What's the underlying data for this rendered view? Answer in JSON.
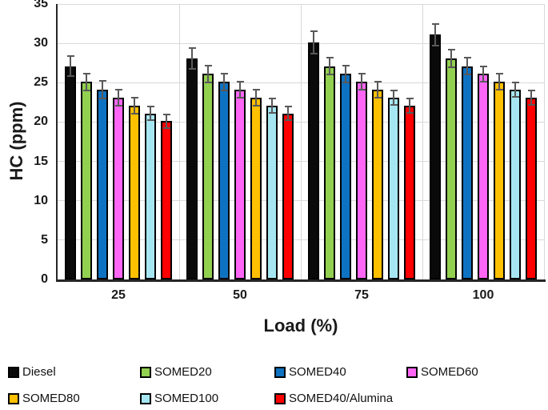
{
  "chart_data": {
    "type": "bar",
    "title": "",
    "xlabel": "Load (%)",
    "ylabel": "HC (ppm)",
    "categories": [
      "25",
      "50",
      "75",
      "100"
    ],
    "series": [
      {
        "name": "Diesel",
        "color": "#0a0a0a",
        "values": [
          27.1,
          28.1,
          30.1,
          31.1
        ],
        "errors": [
          1.4,
          1.4,
          1.5,
          1.5
        ]
      },
      {
        "name": "SOMED20",
        "color": "#92d050",
        "values": [
          25.1,
          26.1,
          27.1,
          28.1
        ],
        "errors": [
          1.2,
          1.2,
          1.2,
          1.2
        ]
      },
      {
        "name": "SOMED40",
        "color": "#0e72c2",
        "values": [
          24.1,
          25.1,
          26.1,
          27.1
        ],
        "errors": [
          1.2,
          1.2,
          1.2,
          1.2
        ]
      },
      {
        "name": "SOMED60",
        "color": "#ff66f5",
        "values": [
          23.1,
          24.1,
          25.1,
          26.1
        ],
        "errors": [
          1.1,
          1.1,
          1.1,
          1.1
        ]
      },
      {
        "name": "SOMED80",
        "color": "#ffc000",
        "values": [
          22.1,
          23.1,
          24.1,
          25.1
        ],
        "errors": [
          1.1,
          1.1,
          1.1,
          1.1
        ]
      },
      {
        "name": "SOMED100",
        "color": "#a6e6f2",
        "values": [
          21.1,
          22.1,
          23.1,
          24.1
        ],
        "errors": [
          1.0,
          1.0,
          1.0,
          1.0
        ]
      },
      {
        "name": "SOMED40/Alumina",
        "color": "#fe0000",
        "values": [
          20.1,
          21.1,
          22.1,
          23.1
        ],
        "errors": [
          1.0,
          1.0,
          1.0,
          1.0
        ]
      }
    ],
    "ylim": [
      0,
      35
    ],
    "ytick_step": 5,
    "y_ticks": [
      0,
      5,
      10,
      15,
      20,
      25,
      30,
      35
    ],
    "grid": true,
    "legend_position": "bottom",
    "style": {
      "grid_color": "#d9d9d9",
      "axis_color": "#262626",
      "error_bar_color": "#595959",
      "bar_border_color": "#000000",
      "text_color": "#1a1a1a",
      "background": "#ffffff"
    }
  }
}
